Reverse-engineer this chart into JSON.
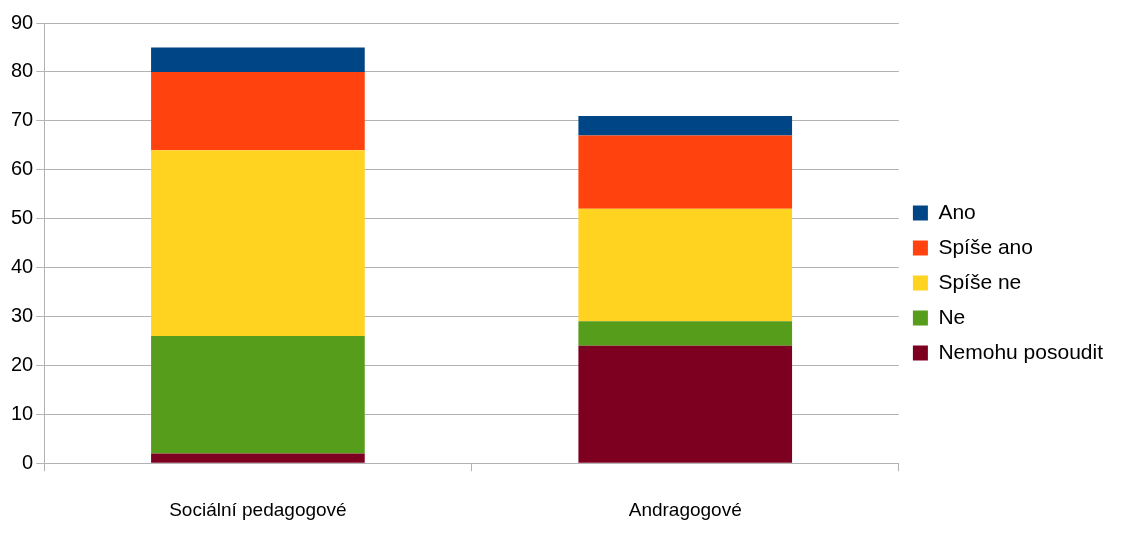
{
  "chart_data": {
    "type": "bar",
    "stacked": true,
    "categories": [
      "Sociální pedagogové",
      "Andragogové"
    ],
    "series": [
      {
        "name": "Nemohu posoudit",
        "color": "#7e0021",
        "values": [
          2,
          24
        ]
      },
      {
        "name": "Ne",
        "color": "#579d1c",
        "values": [
          24,
          5
        ]
      },
      {
        "name": "Spíše ne",
        "color": "#ffd320",
        "values": [
          38,
          23
        ]
      },
      {
        "name": "Spíše ano",
        "color": "#ff420e",
        "values": [
          16,
          15
        ]
      },
      {
        "name": "Ano",
        "color": "#004586",
        "values": [
          5,
          4
        ]
      }
    ],
    "ylim": [
      0,
      90
    ],
    "yticks": [
      0,
      10,
      20,
      30,
      40,
      50,
      60,
      70,
      80,
      90
    ],
    "grid": "y",
    "legend": "right"
  }
}
